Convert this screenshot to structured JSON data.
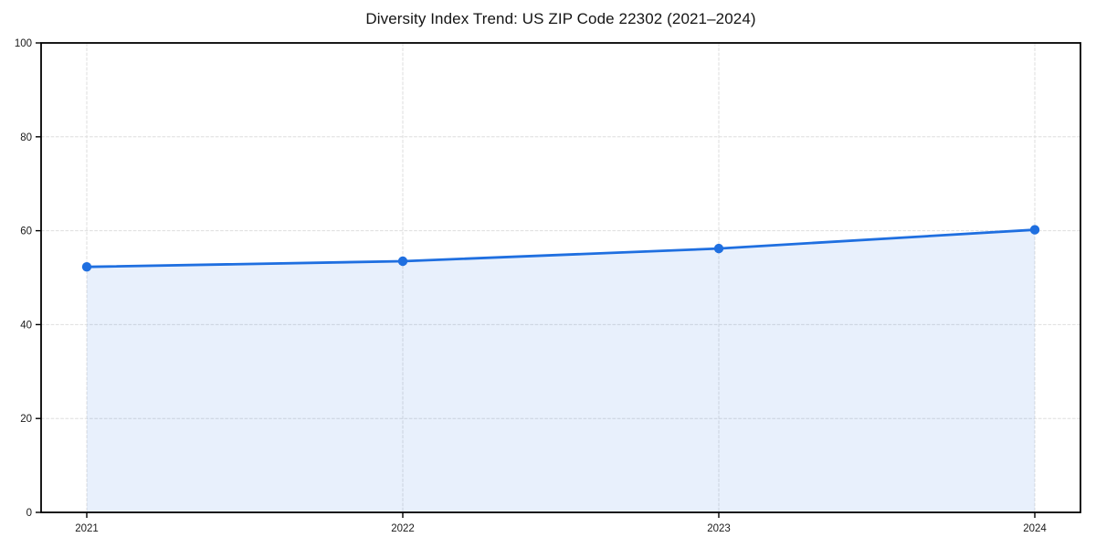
{
  "chart_data": {
    "type": "area",
    "title": "Diversity Index Trend: US ZIP Code 22302 (2021–2024)",
    "x": [
      2021,
      2022,
      2023,
      2024
    ],
    "x_tick_labels": [
      "2021",
      "2022",
      "2023",
      "2024"
    ],
    "series": [
      {
        "name": "Diversity Index",
        "values": [
          52.3,
          53.5,
          56.2,
          60.2
        ]
      }
    ],
    "xlabel": "",
    "ylabel": "",
    "ylim": [
      0,
      100
    ],
    "yticks": [
      0,
      20,
      40,
      60,
      80,
      100
    ],
    "y_tick_labels": [
      "0",
      "20",
      "40",
      "60",
      "80",
      "100"
    ],
    "grid": "dashed-both-axes",
    "legend": "none",
    "marker": "circle",
    "colors": {
      "line": "#1f6fe0",
      "marker": "#1f6fe0",
      "area_fill": "rgba(31,111,224,0.10)",
      "gridline": "#dedede",
      "axis": "#000000",
      "tick_text": "#1a1a1a",
      "title_text": "#141414",
      "background": "#ffffff"
    }
  }
}
